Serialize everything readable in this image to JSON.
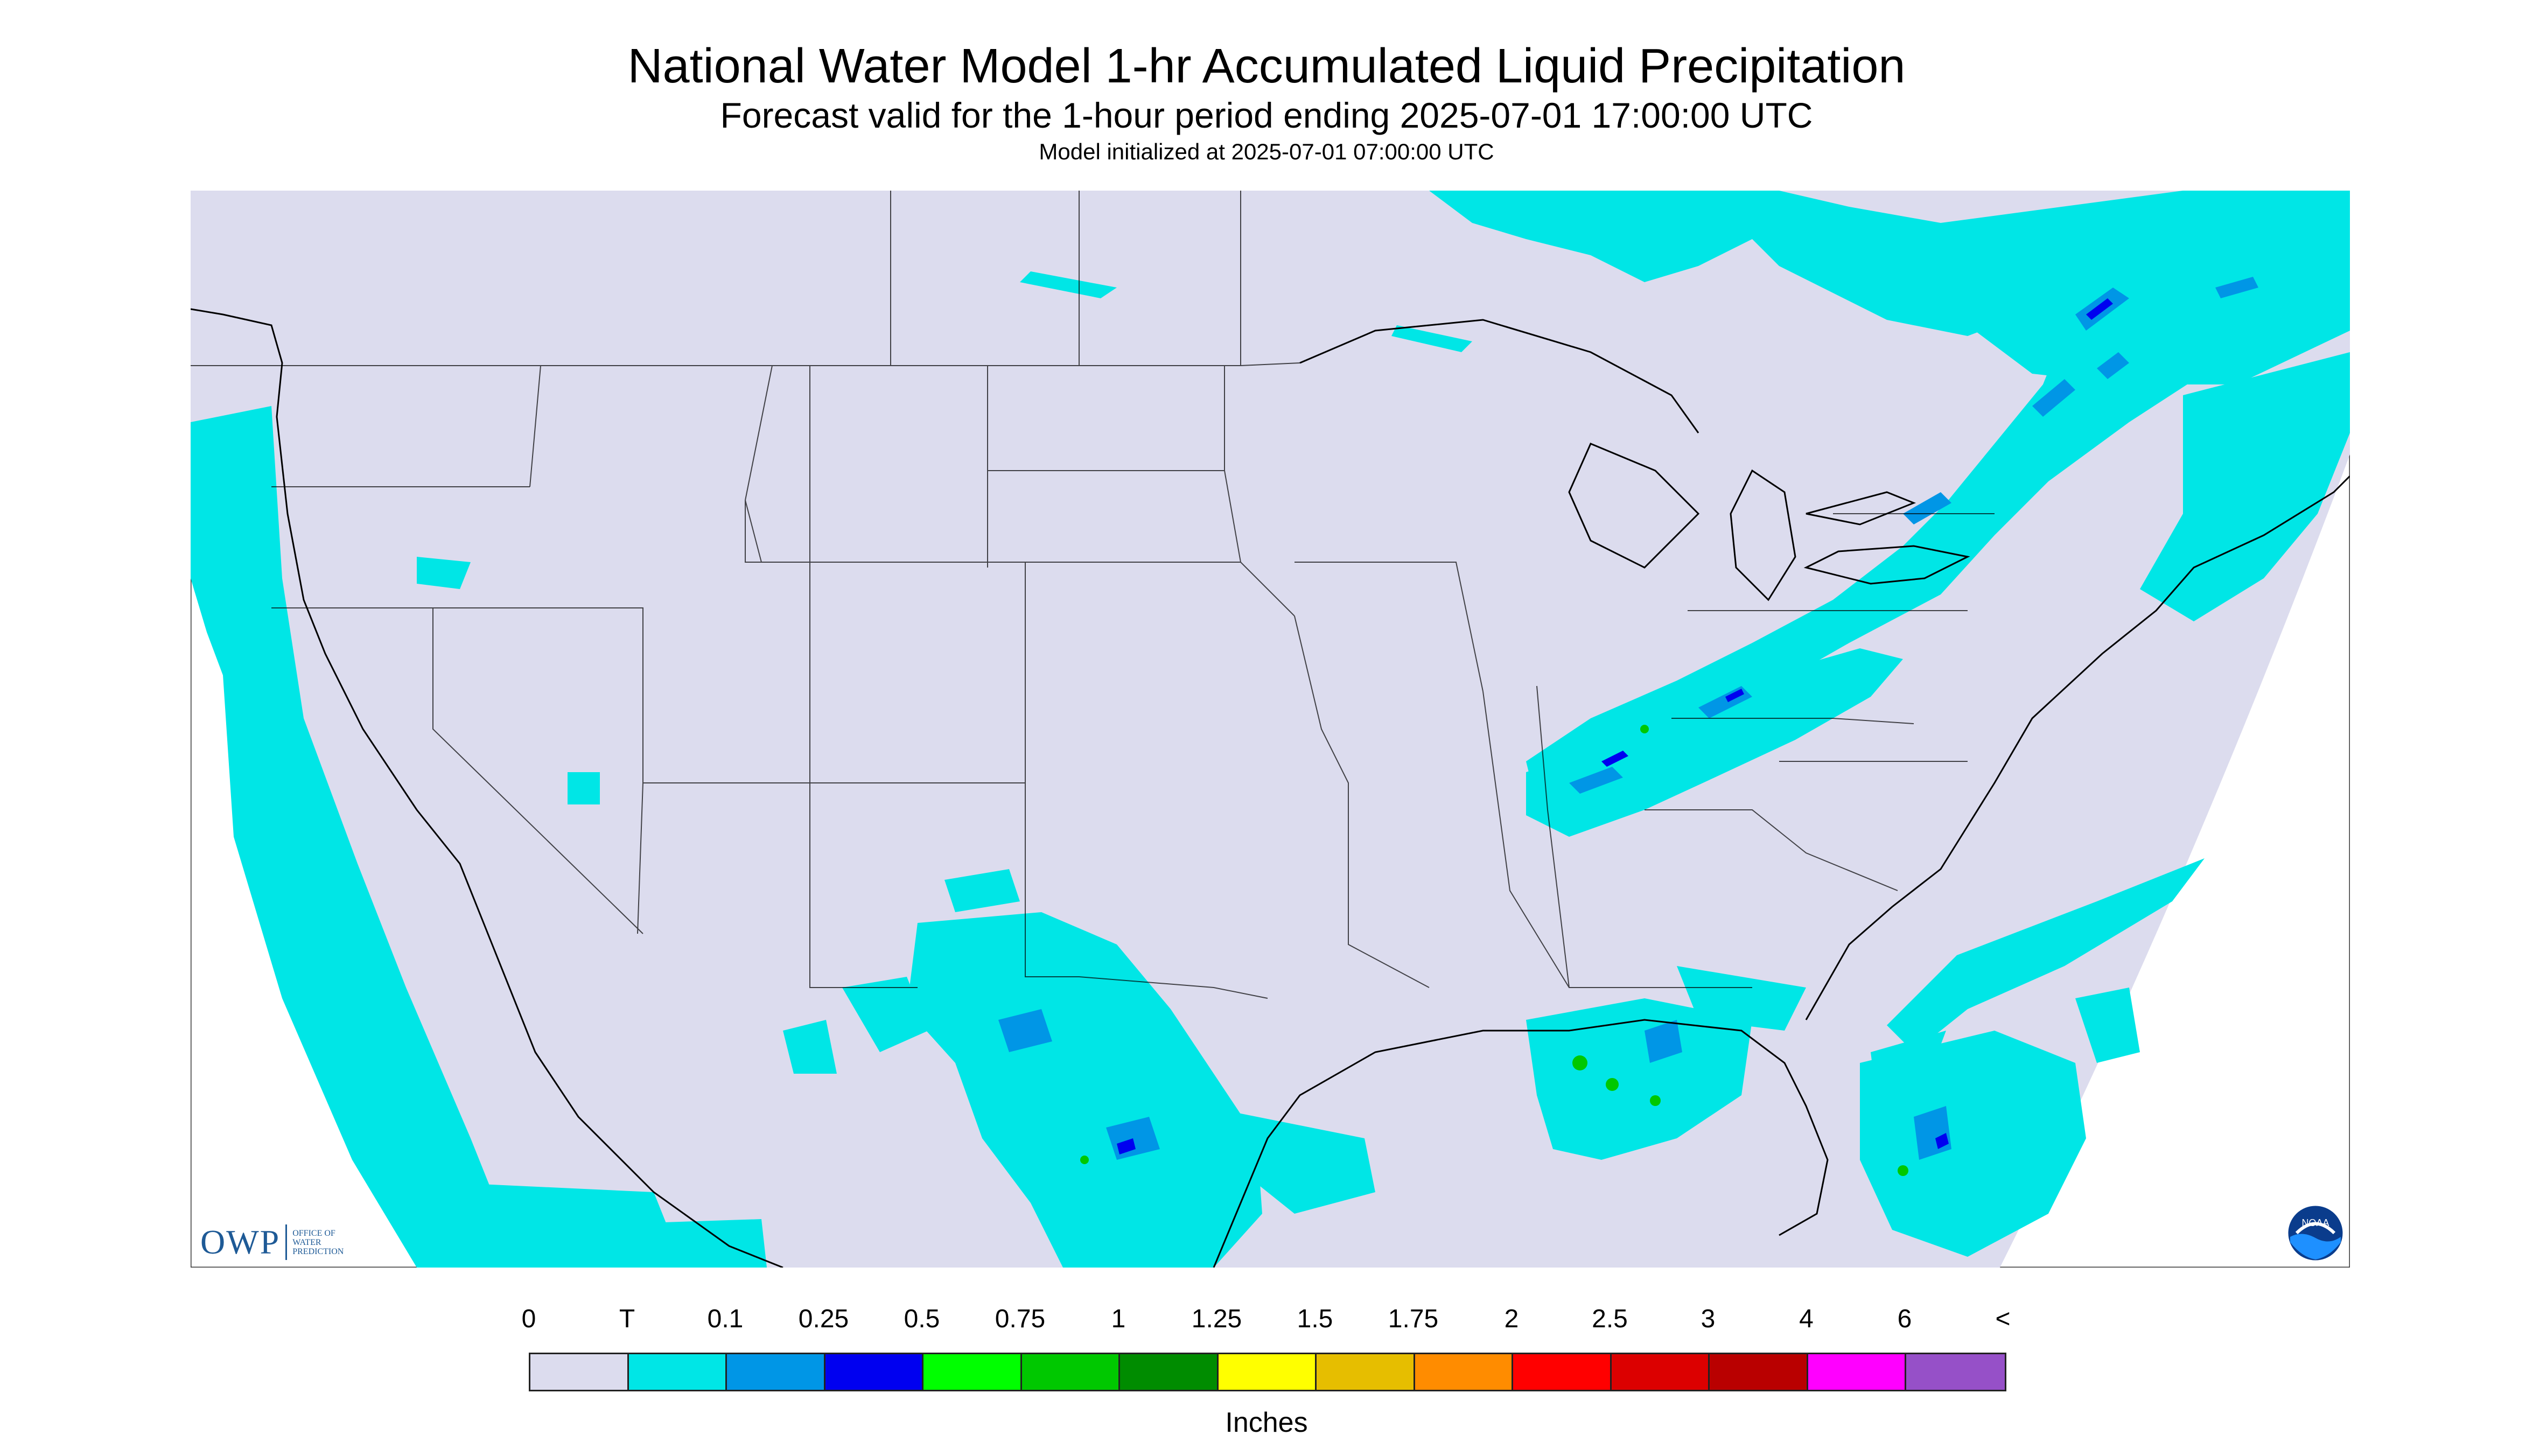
{
  "title": "National Water Model 1-hr Accumulated Liquid Precipitation",
  "subtitle": "Forecast valid for the 1-hour period ending 2025-07-01 17:00:00 UTC",
  "init_line": "Model initialized at 2025-07-01 07:00:00 UTC",
  "logo_owp": {
    "mark": "OWP",
    "text": [
      "OFFICE OF",
      "WATER",
      "PREDICTION"
    ]
  },
  "logo_noaa": "NOAA",
  "legend": {
    "labels": [
      "0",
      "T",
      "0.1",
      "0.25",
      "0.5",
      "0.75",
      "1",
      "1.25",
      "1.5",
      "1.75",
      "2",
      "2.5",
      "3",
      "4",
      "6",
      "<"
    ],
    "colors": [
      "#dcdcee",
      "#00e6e6",
      "#0096e6",
      "#0000f0",
      "#00ff00",
      "#00c800",
      "#008c00",
      "#ffff00",
      "#e6be00",
      "#ff8c00",
      "#ff0000",
      "#dc0000",
      "#b90000",
      "#ff00ff",
      "#9650c8"
    ],
    "units": "Inches"
  },
  "map_colors": {
    "background": "#dcdcee",
    "trace": "#00e6e6",
    "light": "#0096e6",
    "moderate": "#0000f0",
    "heavy": "#00c800",
    "border": "#000000"
  }
}
